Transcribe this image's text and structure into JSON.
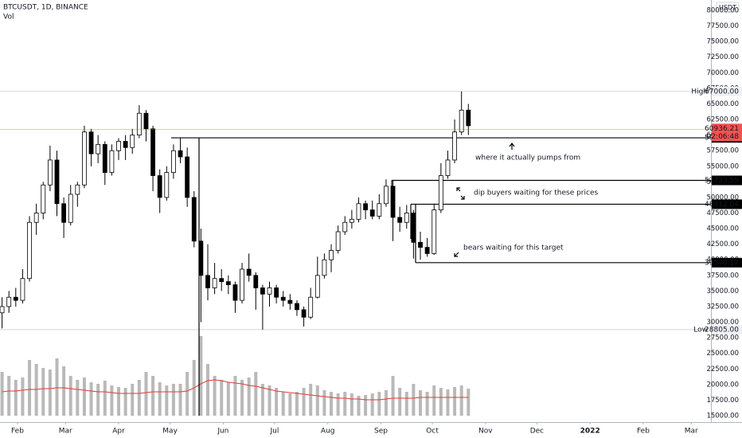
{
  "chart_data": {
    "type": "candlestick",
    "title": "BTCUSDT, 1D, BINANCE",
    "volume_label": "Vol",
    "currency": "USDT",
    "x": [
      22,
      26,
      30,
      34,
      38,
      42,
      46,
      50,
      54,
      58,
      62,
      66,
      70,
      74,
      78,
      82,
      86,
      90,
      94,
      98,
      102,
      106,
      110,
      114,
      118,
      122,
      126,
      130,
      134,
      138,
      142,
      146,
      150,
      154,
      158,
      162,
      166,
      170,
      174,
      178,
      182,
      186,
      190,
      194,
      198,
      202,
      206,
      210,
      214,
      218,
      222,
      226,
      230,
      234,
      238,
      242,
      246,
      250,
      254,
      258,
      262,
      266,
      270,
      274,
      278,
      282,
      286,
      290,
      294
    ],
    "open": [
      31500,
      32500,
      34000,
      33500,
      37000,
      46000,
      47500,
      52000,
      56000,
      49000,
      46000,
      50500,
      52000,
      60500,
      57000,
      58500,
      54000,
      57500,
      59000,
      58000,
      60000,
      63500,
      61000,
      53500,
      50000,
      54000,
      57500,
      56500,
      50000,
      43000,
      37500,
      35500,
      37000,
      36500,
      36000,
      33500,
      38500,
      37500,
      35500,
      34500,
      35500,
      34000,
      33500,
      33000,
      32000,
      30800,
      34000,
      37500,
      40000,
      41500,
      44500,
      46000,
      46500,
      49000,
      48000,
      47000,
      49000,
      51800,
      46800,
      46000,
      47500,
      42800,
      42000,
      41000,
      48000,
      53500,
      56000,
      60500,
      64000
    ],
    "high": [
      34000,
      35000,
      35500,
      38500,
      47000,
      49000,
      52500,
      58300,
      57500,
      50000,
      52000,
      52500,
      61500,
      61000,
      60000,
      59000,
      58500,
      59500,
      60000,
      61000,
      64800,
      64000,
      61500,
      54500,
      55000,
      58500,
      59500,
      58000,
      51000,
      45000,
      42500,
      39500,
      38500,
      37500,
      36500,
      39500,
      41000,
      38000,
      36000,
      36500,
      36000,
      35000,
      34500,
      33500,
      32500,
      35500,
      40500,
      41000,
      42500,
      45500,
      47000,
      48000,
      50000,
      49500,
      49500,
      50500,
      52900,
      52700,
      48500,
      48800,
      48000,
      44500,
      43500,
      49000,
      55500,
      57500,
      62500,
      67000,
      65000
    ],
    "low": [
      29000,
      31500,
      32500,
      33000,
      36500,
      44000,
      46500,
      51000,
      47000,
      43500,
      45500,
      48500,
      51500,
      55000,
      55500,
      52000,
      53500,
      56000,
      56000,
      57000,
      59500,
      59000,
      51000,
      47500,
      49500,
      53000,
      55500,
      48500,
      42000,
      30000,
      33500,
      34500,
      35000,
      34500,
      31500,
      33000,
      36500,
      32000,
      28800,
      32500,
      33000,
      32500,
      32000,
      31000,
      29300,
      30500,
      33800,
      37000,
      38000,
      41000,
      44000,
      45000,
      46000,
      46500,
      46500,
      46500,
      48500,
      43000,
      44500,
      45000,
      40200,
      40000,
      40500,
      40800,
      47500,
      53000,
      55500,
      60000,
      60000
    ],
    "close": [
      32500,
      34000,
      33500,
      37000,
      46000,
      47500,
      52000,
      56000,
      49000,
      46000,
      50500,
      52000,
      60500,
      57000,
      58500,
      54000,
      57500,
      59000,
      58000,
      60000,
      63500,
      61000,
      53500,
      50000,
      54000,
      57500,
      56500,
      50000,
      43000,
      37500,
      35500,
      37000,
      36500,
      36000,
      33500,
      38500,
      37500,
      35500,
      34500,
      35500,
      34000,
      33500,
      33000,
      32000,
      30800,
      34000,
      37500,
      40000,
      41500,
      44500,
      46000,
      46500,
      49000,
      48000,
      47000,
      49000,
      51800,
      46800,
      46000,
      47500,
      42800,
      42000,
      41000,
      48000,
      53500,
      56000,
      60500,
      64000,
      61500
    ],
    "volume": [
      55,
      50,
      45,
      48,
      70,
      65,
      60,
      58,
      72,
      62,
      50,
      45,
      48,
      42,
      40,
      44,
      38,
      36,
      35,
      40,
      45,
      55,
      50,
      42,
      38,
      40,
      40,
      55,
      70,
      100,
      65,
      50,
      45,
      42,
      50,
      45,
      48,
      55,
      40,
      38,
      35,
      30,
      28,
      30,
      35,
      40,
      38,
      32,
      30,
      28,
      30,
      28,
      25,
      26,
      28,
      30,
      32,
      50,
      35,
      30,
      40,
      32,
      30,
      38,
      35,
      33,
      36,
      38,
      34
    ],
    "volume_ma": [
      30,
      31,
      31,
      32,
      33,
      33,
      34,
      34,
      35,
      35,
      34,
      33,
      32,
      31,
      30,
      30,
      29,
      28,
      28,
      28,
      28,
      29,
      30,
      30,
      30,
      30,
      30,
      31,
      35,
      40,
      44,
      45,
      44,
      42,
      41,
      40,
      38,
      37,
      35,
      33,
      31,
      30,
      29,
      28,
      27,
      26,
      25,
      24,
      23,
      22,
      22,
      21,
      21,
      20,
      20,
      20,
      21,
      22,
      22,
      22,
      22,
      23,
      23,
      23,
      23,
      23,
      23,
      23,
      23
    ],
    "up_color": "#ffffff",
    "down_color": "#000000",
    "volume_color": "#a8a8a8",
    "ma_color": "#e53935",
    "last_color": "#ef5350",
    "xlim": [
      20.8,
      435.5
    ],
    "xticks": [
      {
        "value": 31,
        "label": "Feb"
      },
      {
        "value": 59,
        "label": "Mar"
      },
      {
        "value": 90,
        "label": "Apr"
      },
      {
        "value": 120,
        "label": "May"
      },
      {
        "value": 151,
        "label": "Jun"
      },
      {
        "value": 181,
        "label": "Jul"
      },
      {
        "value": 212,
        "label": "Aug"
      },
      {
        "value": 243,
        "label": "Sep"
      },
      {
        "value": 273,
        "label": "Oct"
      },
      {
        "value": 304,
        "label": "Nov"
      },
      {
        "value": 334,
        "label": "Dec"
      },
      {
        "value": 365,
        "label": "2022"
      },
      {
        "value": 396,
        "label": "Feb"
      },
      {
        "value": 424,
        "label": "Mar"
      }
    ],
    "ylim": [
      15000,
      80000
    ],
    "yticks": [
      {
        "value": 15000,
        "label": "15000.00"
      },
      {
        "value": 17500,
        "label": "17500.00"
      },
      {
        "value": 20000,
        "label": "20000.00"
      },
      {
        "value": 22500,
        "label": "22500.00"
      },
      {
        "value": 25000,
        "label": "25000.00"
      },
      {
        "value": 27500,
        "label": "27500.00"
      },
      {
        "value": 30000,
        "label": "30000.00"
      },
      {
        "value": 32500,
        "label": "32500.00"
      },
      {
        "value": 35000,
        "label": "35000.00"
      },
      {
        "value": 37500,
        "label": "37500.00"
      },
      {
        "value": 40000,
        "label": "40000.00"
      },
      {
        "value": 42500,
        "label": "42500.00"
      },
      {
        "value": 45000,
        "label": "45000.00"
      },
      {
        "value": 47500,
        "label": "47500.00"
      },
      {
        "value": 50000,
        "label": "50000.00"
      },
      {
        "value": 52500,
        "label": "52500.00"
      },
      {
        "value": 55000,
        "label": "55000.00"
      },
      {
        "value": 57500,
        "label": "57500.00"
      },
      {
        "value": 60000,
        "label": "60000.00"
      },
      {
        "value": 62500,
        "label": "62500.00"
      },
      {
        "value": 65000,
        "label": "65000.00"
      },
      {
        "value": 67500,
        "label": "67500.00"
      },
      {
        "value": 70000,
        "label": "70000.00"
      },
      {
        "value": 72500,
        "label": "72500.00"
      },
      {
        "value": 75000,
        "label": "75000.00"
      },
      {
        "value": 77500,
        "label": "77500.00"
      },
      {
        "value": 80000,
        "label": "80000.00"
      }
    ],
    "high_marker": {
      "name": "High",
      "value": 67000,
      "label": "67000.00"
    },
    "low_marker": {
      "name": "Low",
      "value": 28805,
      "label": "28805.00"
    },
    "last_price": 60936.21,
    "countdown": "02:06:48",
    "levels": [
      59557.76,
      52733.59,
      48912.04,
      39540.17
    ],
    "annotations": [
      "where it actually pumps from",
      "dip buyers waiting for these prices",
      "bears waiting for this target"
    ]
  }
}
